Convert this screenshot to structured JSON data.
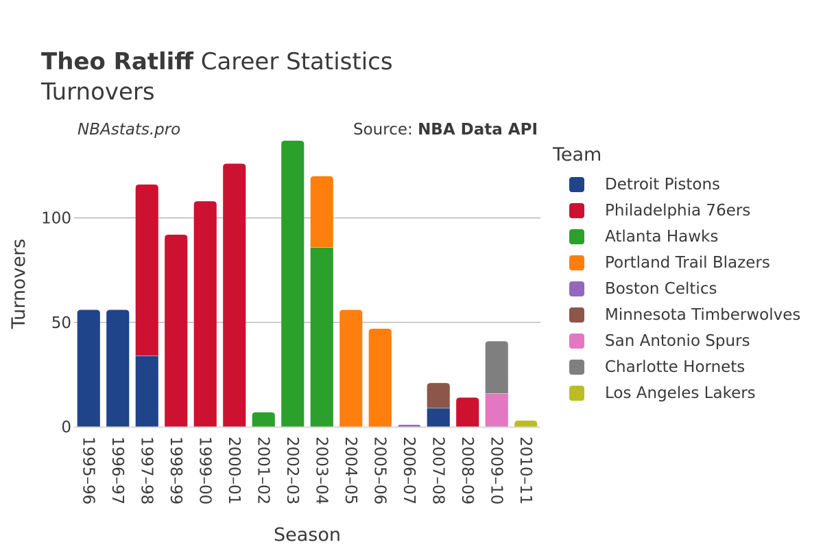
{
  "header": {
    "title_bold": "Theo Ratliff",
    "title_rest": "Career Statistics",
    "subtitle": "Turnovers",
    "watermark": "NBAstats.pro",
    "source_prefix": "Source: ",
    "source_bold": "NBA Data API"
  },
  "legend": {
    "title": "Team",
    "items": [
      {
        "label": "Detroit Pistons",
        "color": "#1f448a"
      },
      {
        "label": "Philadelphia 76ers",
        "color": "#cc1230"
      },
      {
        "label": "Atlanta Hawks",
        "color": "#2ca02c"
      },
      {
        "label": "Portland Trail Blazers",
        "color": "#ff7f0e"
      },
      {
        "label": "Boston Celtics",
        "color": "#9467bd"
      },
      {
        "label": "Minnesota Timberwolves",
        "color": "#8c564b"
      },
      {
        "label": "San Antonio Spurs",
        "color": "#e377c2"
      },
      {
        "label": "Charlotte Hornets",
        "color": "#7f7f7f"
      },
      {
        "label": "Los Angeles Lakers",
        "color": "#bcbd22"
      }
    ]
  },
  "chart_data": {
    "type": "bar",
    "stacked": true,
    "xlabel": "Season",
    "ylabel": "Turnovers",
    "ylim": [
      0,
      137
    ],
    "yticks": [
      0,
      50,
      100
    ],
    "grid": true,
    "legend_position": "right",
    "categories": [
      "1995–96",
      "1996–97",
      "1997–98",
      "1998–99",
      "1999–00",
      "2000–01",
      "2001–02",
      "2002–03",
      "2003–04",
      "2004–05",
      "2005–06",
      "2006–07",
      "2007–08",
      "2008–09",
      "2009–10",
      "2010–11"
    ],
    "series": [
      {
        "name": "Detroit Pistons",
        "color": "#1f448a",
        "values": [
          56,
          56,
          34,
          0,
          0,
          0,
          0,
          0,
          0,
          0,
          0,
          0,
          9,
          0,
          0,
          0
        ]
      },
      {
        "name": "Philadelphia 76ers",
        "color": "#cc1230",
        "values": [
          0,
          0,
          82,
          92,
          108,
          126,
          0,
          0,
          0,
          0,
          0,
          0,
          0,
          14,
          0,
          0
        ]
      },
      {
        "name": "Atlanta Hawks",
        "color": "#2ca02c",
        "values": [
          0,
          0,
          0,
          0,
          0,
          0,
          7,
          137,
          86,
          0,
          0,
          0,
          0,
          0,
          0,
          0
        ]
      },
      {
        "name": "Portland Trail Blazers",
        "color": "#ff7f0e",
        "values": [
          0,
          0,
          0,
          0,
          0,
          0,
          0,
          0,
          34,
          56,
          47,
          0,
          0,
          0,
          0,
          0
        ]
      },
      {
        "name": "Boston Celtics",
        "color": "#9467bd",
        "values": [
          0,
          0,
          0,
          0,
          0,
          0,
          0,
          0,
          0,
          0,
          0,
          1,
          0,
          0,
          0,
          0
        ]
      },
      {
        "name": "Minnesota Timberwolves",
        "color": "#8c564b",
        "values": [
          0,
          0,
          0,
          0,
          0,
          0,
          0,
          0,
          0,
          0,
          0,
          0,
          12,
          0,
          0,
          0
        ]
      },
      {
        "name": "San Antonio Spurs",
        "color": "#e377c2",
        "values": [
          0,
          0,
          0,
          0,
          0,
          0,
          0,
          0,
          0,
          0,
          0,
          0,
          0,
          0,
          16,
          0
        ]
      },
      {
        "name": "Charlotte Hornets",
        "color": "#7f7f7f",
        "values": [
          0,
          0,
          0,
          0,
          0,
          0,
          0,
          0,
          0,
          0,
          0,
          0,
          0,
          0,
          25,
          0
        ]
      },
      {
        "name": "Los Angeles Lakers",
        "color": "#bcbd22",
        "values": [
          0,
          0,
          0,
          0,
          0,
          0,
          0,
          0,
          0,
          0,
          0,
          0,
          0,
          0,
          0,
          3
        ]
      }
    ]
  }
}
